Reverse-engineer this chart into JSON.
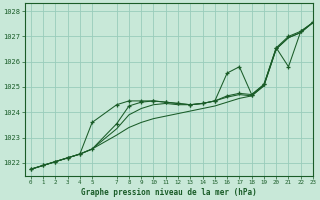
{
  "title": "Graphe pression niveau de la mer (hPa)",
  "background_color": "#c8e8d8",
  "grid_color": "#99ccbb",
  "line_color": "#1a5c28",
  "xlim": [
    -0.5,
    23
  ],
  "ylim": [
    1021.5,
    1028.3
  ],
  "yticks": [
    1022,
    1023,
    1024,
    1025,
    1026,
    1027,
    1028
  ],
  "xtick_positions": [
    0,
    1,
    2,
    3,
    4,
    5,
    7,
    8,
    9,
    10,
    11,
    12,
    13,
    14,
    15,
    16,
    17,
    18,
    19,
    20,
    21,
    22,
    23
  ],
  "series1_x": [
    0,
    1,
    2,
    3,
    4,
    5,
    7,
    8,
    9,
    10,
    11,
    12,
    13,
    14,
    15,
    16,
    17,
    18,
    19,
    20,
    21,
    22,
    23
  ],
  "series1_y": [
    1021.75,
    1021.9,
    1022.05,
    1022.2,
    1022.35,
    1022.55,
    1023.55,
    1024.25,
    1024.4,
    1024.45,
    1024.4,
    1024.35,
    1024.3,
    1024.35,
    1024.45,
    1024.65,
    1024.75,
    1024.7,
    1025.1,
    1026.55,
    1027.0,
    1027.2,
    1027.55
  ],
  "series1_marker": true,
  "series2_x": [
    0,
    1,
    2,
    3,
    4,
    5,
    7,
    8,
    9,
    10,
    11,
    12,
    13,
    14,
    15,
    16,
    17,
    18,
    19,
    20,
    21,
    22,
    23
  ],
  "series2_y": [
    1021.75,
    1021.9,
    1022.05,
    1022.2,
    1022.35,
    1022.55,
    1023.1,
    1023.4,
    1023.6,
    1023.75,
    1023.85,
    1023.95,
    1024.05,
    1024.15,
    1024.25,
    1024.4,
    1024.55,
    1024.65,
    1025.05,
    1026.5,
    1026.95,
    1027.15,
    1027.55
  ],
  "series2_marker": false,
  "series3_x": [
    0,
    1,
    2,
    3,
    4,
    5,
    7,
    8,
    9,
    10,
    11,
    12,
    13,
    14,
    15,
    16,
    17,
    18,
    19,
    20,
    21,
    22,
    23
  ],
  "series3_y": [
    1021.75,
    1021.9,
    1022.05,
    1022.2,
    1022.35,
    1022.55,
    1023.35,
    1023.9,
    1024.15,
    1024.3,
    1024.35,
    1024.3,
    1024.3,
    1024.35,
    1024.45,
    1024.6,
    1024.7,
    1024.65,
    1025.05,
    1026.5,
    1026.95,
    1027.15,
    1027.55
  ],
  "series3_marker": false,
  "series4_x": [
    0,
    1,
    2,
    3,
    4,
    5,
    7,
    8,
    9,
    10,
    11,
    12,
    13,
    14,
    15,
    16,
    17,
    18,
    19,
    20,
    21,
    22,
    23
  ],
  "series4_y": [
    1021.75,
    1021.9,
    1022.05,
    1022.2,
    1022.35,
    1023.6,
    1024.3,
    1024.45,
    1024.45,
    1024.45,
    1024.4,
    1024.35,
    1024.3,
    1024.35,
    1024.45,
    1025.55,
    1025.8,
    1024.7,
    1025.1,
    1026.55,
    1025.8,
    1027.2,
    1027.55
  ],
  "series4_marker": true
}
